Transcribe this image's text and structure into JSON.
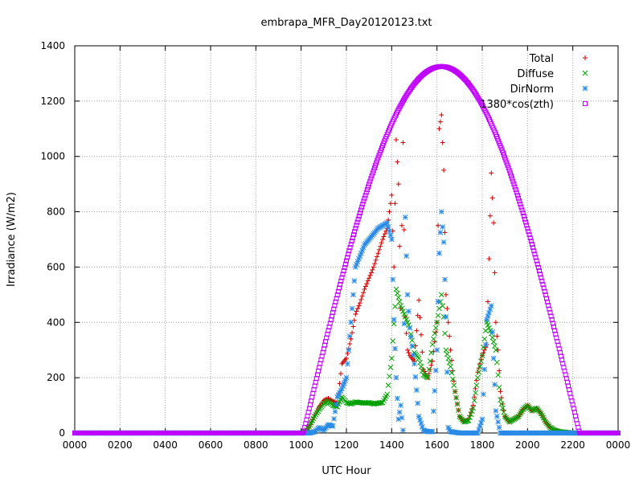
{
  "chart_data": {
    "type": "scatter",
    "title": "embrapa_MFR_Day20120123.txt",
    "xlabel": "UTC Hour",
    "ylabel": "Irradiance (W/m2)",
    "xlim": [
      0,
      24
    ],
    "ylim": [
      0,
      1400
    ],
    "x_ticks": [
      {
        "value": 0,
        "label": "0000"
      },
      {
        "value": 2,
        "label": "0200"
      },
      {
        "value": 4,
        "label": "0400"
      },
      {
        "value": 6,
        "label": "0600"
      },
      {
        "value": 8,
        "label": "0800"
      },
      {
        "value": 10,
        "label": "1000"
      },
      {
        "value": 12,
        "label": "1200"
      },
      {
        "value": 14,
        "label": "1400"
      },
      {
        "value": 16,
        "label": "1600"
      },
      {
        "value": 18,
        "label": "1800"
      },
      {
        "value": 20,
        "label": "2000"
      },
      {
        "value": 22,
        "label": "2200"
      },
      {
        "value": 24,
        "label": "0000"
      }
    ],
    "y_ticks": [
      0,
      200,
      400,
      600,
      800,
      1000,
      1200,
      1400
    ],
    "grid": true,
    "legend_position": "top-right",
    "series": [
      {
        "name": "Total",
        "color": "#cc0000",
        "marker": "plus",
        "points": [
          [
            0,
            0
          ],
          [
            4,
            0
          ],
          [
            8,
            0
          ],
          [
            10,
            0
          ],
          [
            10.2,
            4
          ],
          [
            10.4,
            30
          ],
          [
            10.6,
            65
          ],
          [
            10.8,
            95
          ],
          [
            11,
            118
          ],
          [
            11.2,
            125
          ],
          [
            11.4,
            115
          ],
          [
            11.6,
            108
          ],
          [
            11.8,
            250
          ],
          [
            12,
            270
          ],
          [
            12.2,
            340
          ],
          [
            12.4,
            430
          ],
          [
            12.6,
            470
          ],
          [
            12.8,
            520
          ],
          [
            13,
            560
          ],
          [
            13.2,
            600
          ],
          [
            13.4,
            650
          ],
          [
            13.6,
            700
          ],
          [
            13.8,
            740
          ],
          [
            14,
            860
          ],
          [
            14.1,
            600
          ],
          [
            14.2,
            1060
          ],
          [
            14.3,
            900
          ],
          [
            14.4,
            450
          ],
          [
            14.5,
            1050
          ],
          [
            14.6,
            420
          ],
          [
            14.7,
            300
          ],
          [
            14.8,
            280
          ],
          [
            15,
            260
          ],
          [
            15.2,
            480
          ],
          [
            15.4,
            230
          ],
          [
            15.6,
            200
          ],
          [
            15.8,
            260
          ],
          [
            16,
            400
          ],
          [
            16.1,
            1100
          ],
          [
            16.2,
            1150
          ],
          [
            16.3,
            950
          ],
          [
            16.4,
            500
          ],
          [
            16.6,
            300
          ],
          [
            16.8,
            150
          ],
          [
            17,
            60
          ],
          [
            17.2,
            40
          ],
          [
            17.4,
            50
          ],
          [
            17.6,
            100
          ],
          [
            17.8,
            220
          ],
          [
            18,
            280
          ],
          [
            18.2,
            320
          ],
          [
            18.4,
            940
          ],
          [
            18.5,
            760
          ],
          [
            18.6,
            400
          ],
          [
            18.7,
            300
          ],
          [
            18.8,
            150
          ],
          [
            19,
            60
          ],
          [
            19.2,
            40
          ],
          [
            19.4,
            50
          ],
          [
            19.6,
            60
          ],
          [
            19.8,
            85
          ],
          [
            20,
            100
          ],
          [
            20.2,
            80
          ],
          [
            20.4,
            90
          ],
          [
            20.6,
            70
          ],
          [
            20.8,
            40
          ],
          [
            21,
            20
          ],
          [
            21.2,
            10
          ],
          [
            21.4,
            5
          ],
          [
            21.6,
            2
          ],
          [
            22,
            0
          ],
          [
            24,
            0
          ]
        ]
      },
      {
        "name": "Diffuse",
        "color": "#00a000",
        "marker": "cross",
        "points": [
          [
            0,
            0
          ],
          [
            4,
            0
          ],
          [
            8,
            0
          ],
          [
            10,
            0
          ],
          [
            10.2,
            4
          ],
          [
            10.4,
            30
          ],
          [
            10.6,
            60
          ],
          [
            10.8,
            85
          ],
          [
            11,
            105
          ],
          [
            11.2,
            115
          ],
          [
            11.4,
            100
          ],
          [
            11.6,
            95
          ],
          [
            11.8,
            130
          ],
          [
            12,
            110
          ],
          [
            12.2,
            105
          ],
          [
            12.4,
            112
          ],
          [
            12.6,
            110
          ],
          [
            12.8,
            108
          ],
          [
            13,
            110
          ],
          [
            13.2,
            105
          ],
          [
            13.4,
            108
          ],
          [
            13.6,
            110
          ],
          [
            13.8,
            140
          ],
          [
            14,
            270
          ],
          [
            14.2,
            520
          ],
          [
            14.4,
            460
          ],
          [
            14.6,
            420
          ],
          [
            14.8,
            380
          ],
          [
            15,
            290
          ],
          [
            15.2,
            270
          ],
          [
            15.4,
            210
          ],
          [
            15.6,
            200
          ],
          [
            15.8,
            320
          ],
          [
            16,
            400
          ],
          [
            16.2,
            500
          ],
          [
            16.3,
            420
          ],
          [
            16.4,
            300
          ],
          [
            16.6,
            240
          ],
          [
            16.8,
            150
          ],
          [
            17,
            60
          ],
          [
            17.2,
            40
          ],
          [
            17.4,
            45
          ],
          [
            17.6,
            90
          ],
          [
            17.8,
            200
          ],
          [
            18,
            280
          ],
          [
            18.2,
            400
          ],
          [
            18.4,
            360
          ],
          [
            18.6,
            300
          ],
          [
            18.8,
            120
          ],
          [
            19,
            60
          ],
          [
            19.2,
            40
          ],
          [
            19.4,
            50
          ],
          [
            19.6,
            60
          ],
          [
            19.8,
            85
          ],
          [
            20,
            100
          ],
          [
            20.2,
            80
          ],
          [
            20.4,
            90
          ],
          [
            20.6,
            70
          ],
          [
            20.8,
            40
          ],
          [
            21,
            20
          ],
          [
            21.2,
            10
          ],
          [
            21.4,
            5
          ],
          [
            22,
            0
          ],
          [
            24,
            0
          ]
        ]
      },
      {
        "name": "DirNorm",
        "color": "#2a8be6",
        "marker": "star",
        "points": [
          [
            0,
            0
          ],
          [
            4,
            0
          ],
          [
            8,
            0
          ],
          [
            10,
            0
          ],
          [
            10.4,
            0
          ],
          [
            10.6,
            5
          ],
          [
            10.8,
            20
          ],
          [
            11,
            10
          ],
          [
            11.2,
            30
          ],
          [
            11.4,
            25
          ],
          [
            11.6,
            130
          ],
          [
            11.8,
            160
          ],
          [
            12,
            200
          ],
          [
            12.2,
            400
          ],
          [
            12.4,
            600
          ],
          [
            12.6,
            640
          ],
          [
            12.8,
            680
          ],
          [
            13,
            700
          ],
          [
            13.2,
            720
          ],
          [
            13.4,
            740
          ],
          [
            13.6,
            750
          ],
          [
            13.8,
            760
          ],
          [
            14,
            700
          ],
          [
            14.1,
            410
          ],
          [
            14.2,
            200
          ],
          [
            14.3,
            50
          ],
          [
            14.4,
            100
          ],
          [
            14.5,
            10
          ],
          [
            14.6,
            780
          ],
          [
            14.7,
            500
          ],
          [
            14.8,
            380
          ],
          [
            15,
            250
          ],
          [
            15.2,
            60
          ],
          [
            15.4,
            10
          ],
          [
            15.6,
            5
          ],
          [
            15.8,
            5
          ],
          [
            16,
            300
          ],
          [
            16.1,
            650
          ],
          [
            16.2,
            800
          ],
          [
            16.3,
            690
          ],
          [
            16.4,
            420
          ],
          [
            16.5,
            20
          ],
          [
            16.6,
            5
          ],
          [
            17,
            0
          ],
          [
            17.4,
            0
          ],
          [
            17.8,
            0
          ],
          [
            18,
            50
          ],
          [
            18.2,
            410
          ],
          [
            18.4,
            460
          ],
          [
            18.6,
            80
          ],
          [
            18.8,
            0
          ],
          [
            19.2,
            0
          ],
          [
            20,
            0
          ],
          [
            24,
            0
          ]
        ]
      },
      {
        "name": "1380*cos(zth)",
        "color": "#c000ff",
        "marker": "square",
        "curve": {
          "start": 10.1,
          "end": 22.3,
          "noon": 16.2,
          "peak": 1325
        }
      }
    ]
  }
}
